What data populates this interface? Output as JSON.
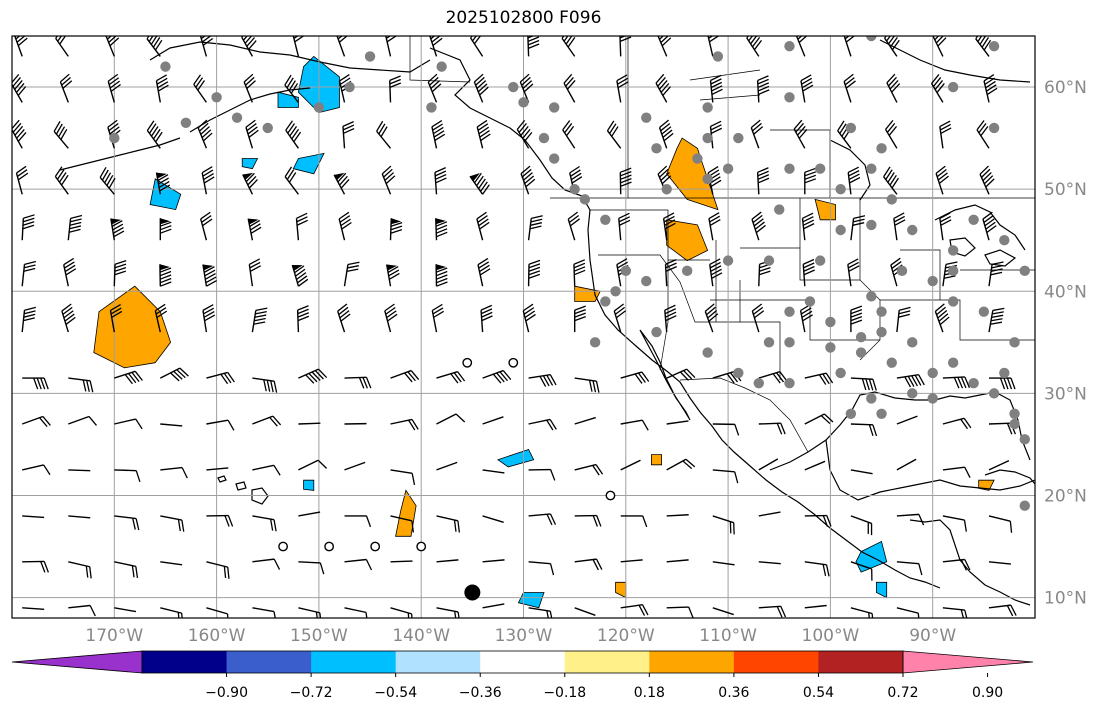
{
  "title": "2025102800 F096",
  "map": {
    "lon_range": [
      -180,
      -80
    ],
    "lat_range": [
      8,
      65
    ],
    "lat_ticks": [
      {
        "value": 10,
        "label": "10°N"
      },
      {
        "value": 20,
        "label": "20°N"
      },
      {
        "value": 30,
        "label": "30°N"
      },
      {
        "value": 40,
        "label": "40°N"
      },
      {
        "value": 50,
        "label": "50°N"
      },
      {
        "value": 60,
        "label": "60°N"
      }
    ],
    "lon_ticks": [
      {
        "value": -170,
        "label": "170°W"
      },
      {
        "value": -160,
        "label": "160°W"
      },
      {
        "value": -150,
        "label": "150°W"
      },
      {
        "value": -140,
        "label": "140°W"
      },
      {
        "value": -130,
        "label": "130°W"
      },
      {
        "value": -120,
        "label": "120°W"
      },
      {
        "value": -110,
        "label": "110°W"
      },
      {
        "value": -100,
        "label": "100°W"
      },
      {
        "value": -90,
        "label": "90°W"
      }
    ],
    "gridlines": true,
    "station_marker_color": "#808080",
    "station_dots": [
      [
        -165,
        62
      ],
      [
        -160,
        59
      ],
      [
        -150,
        58
      ],
      [
        -147,
        60
      ],
      [
        -158,
        57
      ],
      [
        -163,
        56.5
      ],
      [
        -155,
        56
      ],
      [
        -170,
        55
      ],
      [
        -145,
        63
      ],
      [
        -138,
        62
      ],
      [
        -139,
        58
      ],
      [
        -131,
        60
      ],
      [
        -128,
        55
      ],
      [
        -127,
        53
      ],
      [
        -124,
        49
      ],
      [
        -122,
        47
      ],
      [
        -130,
        58.5
      ],
      [
        -127,
        58
      ],
      [
        -118,
        57
      ],
      [
        -112,
        55
      ],
      [
        -116,
        50
      ],
      [
        -112,
        51
      ],
      [
        -113,
        53
      ],
      [
        -110,
        52
      ],
      [
        -104,
        52
      ],
      [
        -99,
        50
      ],
      [
        -105,
        48
      ],
      [
        -101,
        52
      ],
      [
        -96,
        52
      ],
      [
        -94,
        49
      ],
      [
        -96,
        46.5
      ],
      [
        -99,
        46
      ],
      [
        -101,
        43
      ],
      [
        -106,
        43
      ],
      [
        -110,
        43
      ],
      [
        -114,
        42
      ],
      [
        -118,
        41
      ],
      [
        -122,
        39
      ],
      [
        -123,
        35
      ],
      [
        -121,
        40
      ],
      [
        -117,
        36
      ],
      [
        -112,
        34
      ],
      [
        -106,
        35
      ],
      [
        -100,
        34.5
      ],
      [
        -97,
        35.5
      ],
      [
        -97,
        34
      ],
      [
        -95,
        36
      ],
      [
        -94,
        33
      ],
      [
        -92,
        35
      ],
      [
        -90,
        32
      ],
      [
        -88,
        33
      ],
      [
        -86,
        31
      ],
      [
        -84,
        30
      ],
      [
        -83,
        32
      ],
      [
        -82,
        35
      ],
      [
        -85,
        38
      ],
      [
        -88,
        39
      ],
      [
        -90,
        41
      ],
      [
        -93,
        42
      ],
      [
        -88,
        44
      ],
      [
        -86,
        47
      ],
      [
        -83,
        45
      ],
      [
        -81,
        42
      ],
      [
        -88,
        42
      ],
      [
        -92,
        46
      ],
      [
        -95,
        38
      ],
      [
        -102,
        39
      ],
      [
        -104,
        38
      ],
      [
        -100,
        37
      ],
      [
        -96,
        39.5
      ],
      [
        -107,
        31
      ],
      [
        -109,
        32
      ],
      [
        -104,
        31
      ],
      [
        -99,
        32
      ],
      [
        -96,
        29.5
      ],
      [
        -98,
        28
      ],
      [
        -95,
        28
      ],
      [
        -92,
        30
      ],
      [
        -90,
        29.5
      ],
      [
        -82,
        28
      ],
      [
        -82,
        27
      ],
      [
        -81,
        25.5
      ],
      [
        -81,
        19
      ],
      [
        -95,
        54
      ],
      [
        -84,
        64
      ],
      [
        -104,
        35
      ],
      [
        -109,
        55
      ],
      [
        -112,
        58
      ],
      [
        -104,
        59
      ],
      [
        -98,
        56
      ],
      [
        -117,
        54
      ],
      [
        -111,
        63
      ],
      [
        -104,
        64
      ],
      [
        -96,
        65
      ],
      [
        -88,
        60
      ],
      [
        -84,
        56
      ],
      [
        -120,
        42
      ],
      [
        -125,
        50
      ]
    ],
    "station_circles": [
      [
        -135.5,
        33
      ],
      [
        -131,
        33
      ],
      [
        -153.5,
        15
      ],
      [
        -149,
        15
      ],
      [
        -144.5,
        15
      ],
      [
        -140,
        15
      ],
      [
        -121.5,
        20
      ]
    ],
    "black_dot": [
      -135,
      10.5
    ],
    "contour_colors": {
      "orange": "#ffa500",
      "cyan": "#00bfff"
    },
    "contour_regions": [
      {
        "color": "orange",
        "points": [
          [
            -171.5,
            38
          ],
          [
            -168,
            40.5
          ],
          [
            -165.5,
            38
          ],
          [
            -164.5,
            35
          ],
          [
            -166,
            33
          ],
          [
            -169,
            32.5
          ],
          [
            -172,
            34
          ]
        ]
      },
      {
        "color": "orange",
        "points": [
          [
            -114.5,
            55
          ],
          [
            -113,
            54
          ],
          [
            -112,
            51
          ],
          [
            -111,
            48
          ],
          [
            -114,
            49
          ],
          [
            -116,
            51.5
          ],
          [
            -115,
            54
          ]
        ]
      },
      {
        "color": "orange",
        "points": [
          [
            -116,
            47
          ],
          [
            -113,
            46.5
          ],
          [
            -112,
            44
          ],
          [
            -114,
            43
          ],
          [
            -116,
            44.5
          ]
        ]
      },
      {
        "color": "orange",
        "points": [
          [
            -101.5,
            49
          ],
          [
            -99.5,
            48.5
          ],
          [
            -99.5,
            47
          ],
          [
            -101,
            47
          ]
        ]
      },
      {
        "color": "orange",
        "points": [
          [
            -125,
            40.5
          ],
          [
            -122.5,
            40
          ],
          [
            -123,
            39
          ],
          [
            -125,
            39
          ]
        ]
      },
      {
        "color": "orange",
        "points": [
          [
            -141.5,
            20.5
          ],
          [
            -140.5,
            19
          ],
          [
            -141,
            16
          ],
          [
            -142.5,
            16
          ],
          [
            -142,
            18.5
          ]
        ]
      },
      {
        "color": "orange",
        "points": [
          [
            -121,
            11.5
          ],
          [
            -120,
            11.5
          ],
          [
            -120,
            10
          ],
          [
            -121,
            10.5
          ]
        ]
      },
      {
        "color": "orange",
        "points": [
          [
            -117.5,
            24
          ],
          [
            -116.5,
            24
          ],
          [
            -116.5,
            23
          ],
          [
            -117.5,
            23
          ]
        ]
      },
      {
        "color": "orange",
        "points": [
          [
            -85.5,
            21.5
          ],
          [
            -84,
            21.5
          ],
          [
            -84.5,
            20.5
          ],
          [
            -85.5,
            20.7
          ]
        ]
      },
      {
        "color": "cyan",
        "points": [
          [
            -150.5,
            63
          ],
          [
            -148,
            61
          ],
          [
            -148,
            58
          ],
          [
            -150,
            57.5
          ],
          [
            -152,
            59.5
          ],
          [
            -151.5,
            62
          ]
        ]
      },
      {
        "color": "cyan",
        "points": [
          [
            -154,
            59.5
          ],
          [
            -152,
            59
          ],
          [
            -152,
            58
          ],
          [
            -154,
            58
          ]
        ]
      },
      {
        "color": "cyan",
        "points": [
          [
            -166,
            51
          ],
          [
            -163.5,
            49.5
          ],
          [
            -164,
            48
          ],
          [
            -166.5,
            48.5
          ]
        ]
      },
      {
        "color": "cyan",
        "points": [
          [
            -152,
            53
          ],
          [
            -149.5,
            53.5
          ],
          [
            -150.5,
            51.5
          ],
          [
            -152.5,
            52
          ]
        ]
      },
      {
        "color": "cyan",
        "points": [
          [
            -157.5,
            53
          ],
          [
            -156,
            53
          ],
          [
            -156.5,
            52
          ],
          [
            -157.5,
            52.2
          ]
        ]
      },
      {
        "color": "cyan",
        "points": [
          [
            -132.5,
            23.5
          ],
          [
            -129.5,
            24.5
          ],
          [
            -129,
            23.5
          ],
          [
            -131.5,
            22.8
          ]
        ]
      },
      {
        "color": "cyan",
        "points": [
          [
            -130,
            10.5
          ],
          [
            -128,
            10.5
          ],
          [
            -128.5,
            9
          ],
          [
            -130.5,
            9.5
          ]
        ]
      },
      {
        "color": "cyan",
        "points": [
          [
            -97,
            14.5
          ],
          [
            -95,
            15.5
          ],
          [
            -94.5,
            13.5
          ],
          [
            -97,
            12.5
          ],
          [
            -97.5,
            13.5
          ]
        ]
      },
      {
        "color": "cyan",
        "points": [
          [
            -95.5,
            11.5
          ],
          [
            -94.5,
            11.5
          ],
          [
            -94.5,
            10
          ],
          [
            -95.5,
            10.5
          ]
        ]
      },
      {
        "color": "cyan",
        "points": [
          [
            -151.5,
            21.5
          ],
          [
            -150.5,
            21.5
          ],
          [
            -150.5,
            20.5
          ],
          [
            -151.5,
            20.6
          ]
        ]
      }
    ]
  },
  "colorbar": {
    "ticks": [
      "−0.90",
      "−0.72",
      "−0.54",
      "−0.36",
      "−0.18",
      "0.18",
      "0.36",
      "0.54",
      "0.72",
      "0.90"
    ],
    "colors": [
      "#9932cc",
      "#00008b",
      "#3a5fcd",
      "#00bfff",
      "#b0e2ff",
      "#ffffff",
      "#fff08a",
      "#ffa500",
      "#ff4500",
      "#b22222",
      "#ff82ab"
    ]
  }
}
